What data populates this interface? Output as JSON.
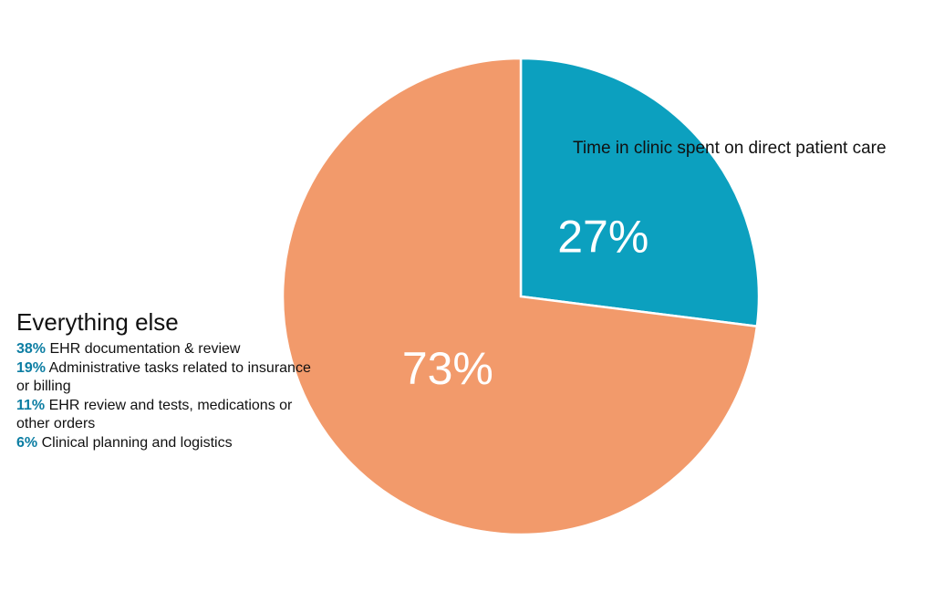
{
  "chart_data": {
    "type": "pie",
    "slices": [
      {
        "label": "Time in clinic spent on direct patient care",
        "value": 27,
        "display": "27%",
        "color": "#0ca0bf"
      },
      {
        "label": "Everything else",
        "value": 73,
        "display": "73%",
        "color": "#f29a6b"
      }
    ],
    "annotation": "Time in clinic spent on direct patient care",
    "breakdown": {
      "title": "Everything else",
      "items": [
        {
          "pct": "38%",
          "text": "EHR documentation & review"
        },
        {
          "pct": "19%",
          "text": "Administrative tasks related to insurance or billing"
        },
        {
          "pct": "11%",
          "text": "EHR review and tests, medications or other orders"
        },
        {
          "pct": "6%",
          "text": "Clinical planning and logistics"
        }
      ],
      "pct_color": "#0d7ea3"
    }
  }
}
